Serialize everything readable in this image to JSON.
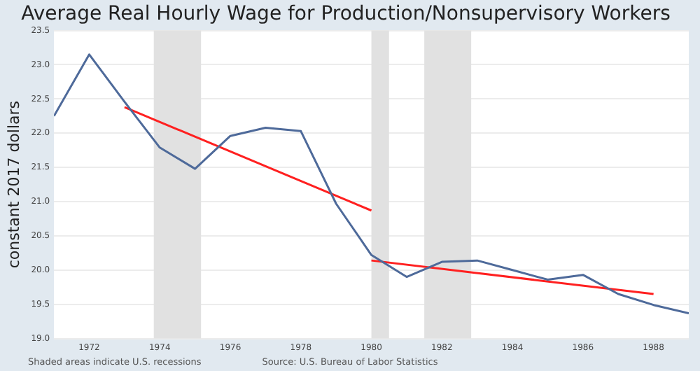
{
  "chart_data": {
    "type": "line",
    "title": "Average Real Hourly Wage for Production/Nonsupervisory Workers",
    "ylabel": "constant 2017 dollars",
    "annotations": [
      "Shaded areas indicate U.S. recessions",
      "Source: U.S. Bureau of Labor Statistics"
    ],
    "x": [
      1971,
      1972,
      1973,
      1974,
      1975,
      1976,
      1977,
      1978,
      1979,
      1980,
      1981,
      1982,
      1983,
      1984,
      1985,
      1986,
      1987,
      1988,
      1989
    ],
    "series": [
      {
        "color": "#4e6a9a",
        "values": [
          22.25,
          23.15,
          22.46,
          21.79,
          21.48,
          21.96,
          22.08,
          22.03,
          20.97,
          20.22,
          19.9,
          20.12,
          20.14,
          20.0,
          19.86,
          19.93,
          19.65,
          19.49,
          19.37
        ]
      },
      {
        "color": "#ff2020",
        "x": [
          1973,
          1980
        ],
        "values": [
          22.38,
          20.87
        ]
      },
      {
        "color": "#ff2020",
        "x": [
          1980,
          1988
        ],
        "values": [
          20.14,
          19.65
        ]
      }
    ],
    "bands": [
      {
        "axis": "x",
        "from": 1973.83,
        "to": 1975.17,
        "color": "#e1e1e1"
      },
      {
        "axis": "x",
        "from": 1980.0,
        "to": 1980.5,
        "color": "#e1e1e1"
      },
      {
        "axis": "x",
        "from": 1981.5,
        "to": 1982.83,
        "color": "#e1e1e1"
      }
    ],
    "xlim": [
      1971,
      1989
    ],
    "xticks": [
      1972,
      1974,
      1976,
      1978,
      1980,
      1982,
      1984,
      1986,
      1988
    ],
    "ylim": [
      19.0,
      23.5
    ],
    "yticks": [
      {
        "value": 19,
        "label": "19.0"
      },
      {
        "value": 19.5,
        "label": "19.5"
      },
      {
        "value": 20,
        "label": "20.0"
      },
      {
        "value": 20.5,
        "label": "20.5"
      },
      {
        "value": 21,
        "label": "21.0"
      },
      {
        "value": 21.5,
        "label": "21.5"
      },
      {
        "value": 22,
        "label": "22.0"
      },
      {
        "value": 22.5,
        "label": "22.5"
      },
      {
        "value": 23,
        "label": "23.0"
      },
      {
        "value": 23.5,
        "label": "23.5"
      }
    ],
    "grid": "y",
    "legend": false,
    "marker": "none",
    "line_style": "solid"
  }
}
